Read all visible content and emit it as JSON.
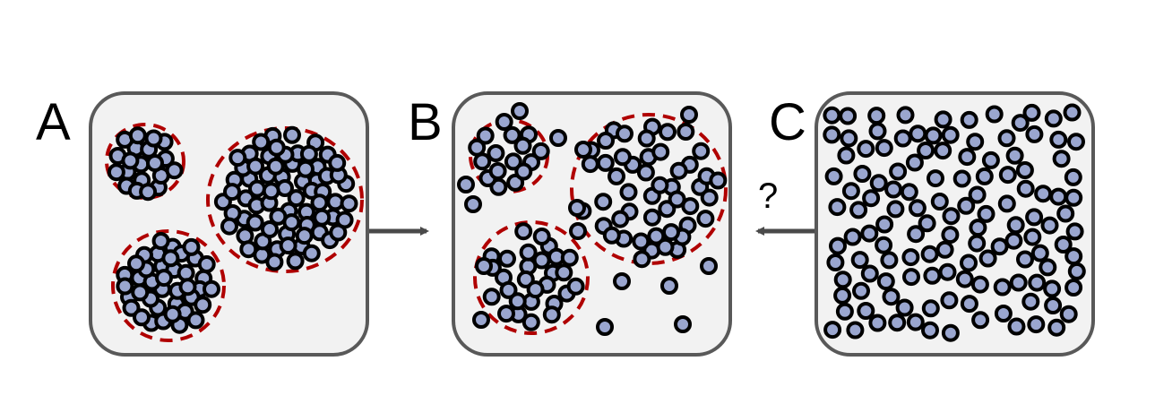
{
  "panels": [
    {
      "id": "A",
      "label": "A"
    },
    {
      "id": "B",
      "label": "B"
    },
    {
      "id": "C",
      "label": "C"
    }
  ],
  "arrow_question": "?",
  "colors": {
    "panel_fill": "#f2f2f2",
    "panel_stroke": "#595959",
    "particle_fill": "#9aa6cf",
    "particle_stroke": "#000000",
    "cluster_outline": "#b00000",
    "arrow": "#4a4a4a"
  }
}
